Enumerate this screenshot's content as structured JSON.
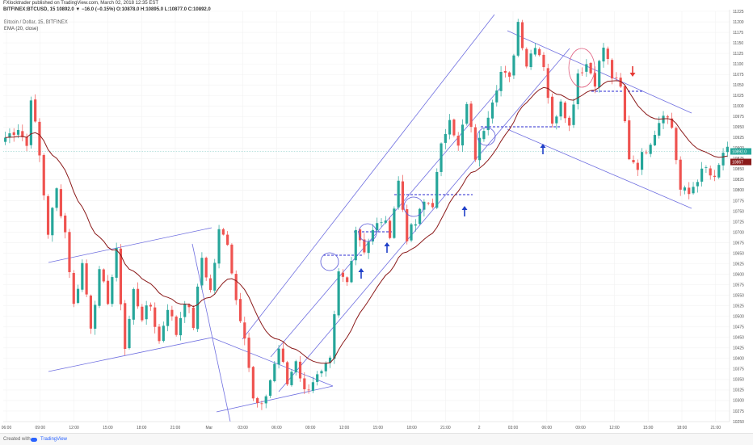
{
  "header": {
    "line1": "FXlocktrader published on TradingView.com, March 02, 2018 12:35 EST",
    "line2": "BITFINEX:BTCUSD, 15  10892.0 ▼ −16.0 (−0.15%) O:10878.0 H:10895.0 L:10877.0 C:10892.0"
  },
  "legend": {
    "title": "Bitcoin / Dollar, 15, BITFINEX",
    "indicator": "EMA (20, close)"
  },
  "footer": {
    "created_with": "Created with",
    "brand": "TradingView"
  },
  "colors": {
    "up": "#26a69a",
    "down": "#ef5350",
    "ema": "#8b1a1a",
    "channel": "#6f6fe0",
    "up_arrow": "#1f3fc8",
    "down_arrow": "#e53935"
  },
  "chart_data": {
    "type": "candlestick",
    "ylim": [
      10250,
      11225
    ],
    "y_ticks": [
      11225,
      11200,
      11175,
      11150,
      11125,
      11100,
      11075,
      11050,
      11025,
      11000,
      10975,
      10950,
      10925,
      10900,
      10875,
      10850,
      10825,
      10800,
      10775,
      10750,
      10725,
      10700,
      10675,
      10650,
      10625,
      10600,
      10575,
      10550,
      10525,
      10500,
      10475,
      10450,
      10425,
      10400,
      10375,
      10350,
      10325,
      10300,
      10275,
      10250
    ],
    "x_ticks": [
      "06:00",
      "09:00",
      "12:00",
      "15:00",
      "18:00",
      "21:00",
      "Mar",
      "03:00",
      "06:00",
      "09:00",
      "12:00",
      "15:00",
      "18:00",
      "21:00",
      "2",
      "03:00",
      "06:00",
      "09:00",
      "12:00",
      "15:00",
      "18:00",
      "21:00"
    ],
    "last_price": "10892.0",
    "ema_price": "10867",
    "ema_period": 20,
    "anchors": [
      [
        0,
        10925
      ],
      [
        3,
        10950
      ],
      [
        5,
        10905
      ],
      [
        6,
        11025
      ],
      [
        8,
        10880
      ],
      [
        10,
        10700
      ],
      [
        12,
        10800
      ],
      [
        14,
        10700
      ],
      [
        16,
        10525
      ],
      [
        18,
        10625
      ],
      [
        20,
        10480
      ],
      [
        22,
        10600
      ],
      [
        24,
        10540
      ],
      [
        26,
        10650
      ],
      [
        28,
        10425
      ],
      [
        30,
        10560
      ],
      [
        32,
        10500
      ],
      [
        34,
        10525
      ],
      [
        36,
        10440
      ],
      [
        38,
        10525
      ],
      [
        40,
        10460
      ],
      [
        42,
        10540
      ],
      [
        44,
        10480
      ],
      [
        46,
        10640
      ],
      [
        48,
        10560
      ],
      [
        50,
        10700
      ],
      [
        52,
        10680
      ],
      [
        54,
        10540
      ],
      [
        56,
        10460
      ],
      [
        58,
        10300
      ],
      [
        60,
        10280
      ],
      [
        62,
        10350
      ],
      [
        64,
        10425
      ],
      [
        66,
        10340
      ],
      [
        68,
        10400
      ],
      [
        70,
        10320
      ],
      [
        72,
        10350
      ],
      [
        74,
        10360
      ],
      [
        76,
        10390
      ],
      [
        78,
        10600
      ],
      [
        80,
        10580
      ],
      [
        82,
        10710
      ],
      [
        84,
        10660
      ],
      [
        86,
        10700
      ],
      [
        88,
        10730
      ],
      [
        90,
        10700
      ],
      [
        92,
        10820
      ],
      [
        94,
        10690
      ],
      [
        96,
        10720
      ],
      [
        98,
        10770
      ],
      [
        100,
        10770
      ],
      [
        102,
        10900
      ],
      [
        104,
        10980
      ],
      [
        106,
        10900
      ],
      [
        108,
        11000
      ],
      [
        110,
        10880
      ],
      [
        112,
        10950
      ],
      [
        114,
        11020
      ],
      [
        116,
        11080
      ],
      [
        118,
        11060
      ],
      [
        120,
        11200
      ],
      [
        122,
        11100
      ],
      [
        124,
        11150
      ],
      [
        126,
        11100
      ],
      [
        128,
        10950
      ],
      [
        130,
        11020
      ],
      [
        132,
        10950
      ],
      [
        134,
        11080
      ],
      [
        136,
        11100
      ],
      [
        138,
        11060
      ],
      [
        140,
        11140
      ],
      [
        142,
        11070
      ],
      [
        144,
        11040
      ],
      [
        146,
        10880
      ],
      [
        148,
        10860
      ],
      [
        150,
        10900
      ],
      [
        152,
        10940
      ],
      [
        154,
        10990
      ],
      [
        156,
        10950
      ],
      [
        158,
        10800
      ],
      [
        160,
        10790
      ],
      [
        162,
        10830
      ],
      [
        164,
        10850
      ],
      [
        166,
        10820
      ],
      [
        168,
        10890
      ]
    ]
  }
}
